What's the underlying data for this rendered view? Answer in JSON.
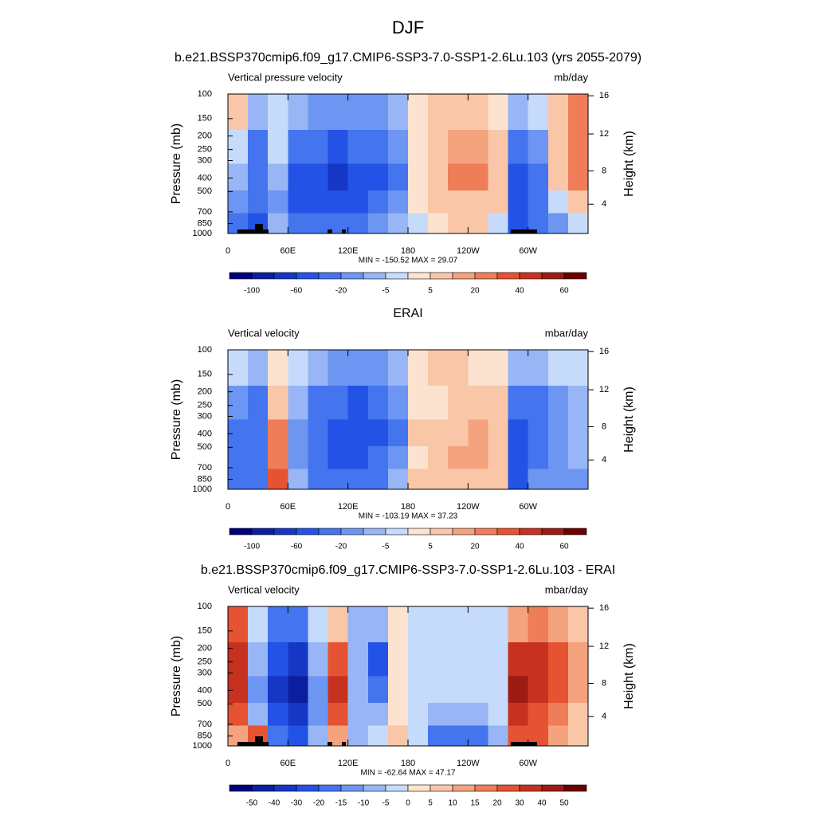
{
  "title": "DJF",
  "colors": [
    "#00007f",
    "#0b1f9e",
    "#1537c4",
    "#2352e6",
    "#4474ee",
    "#6d95f2",
    "#98b6f5",
    "#c6dbfb",
    "#fce3cf",
    "#f9c6a8",
    "#f5a27f",
    "#ef7d57",
    "#e55332",
    "#c6321f",
    "#9c1b12",
    "#6a0000"
  ],
  "chart_data": [
    {
      "type": "contour",
      "title": "b.e21.BSSP370cmip6.f09_g17.CMIP6-SSP3-7.0-SSP1-2.6Lu.103 (yrs 2055-2079)",
      "left_label": "Vertical pressure velocity",
      "right_label": "mb/day",
      "ylabel": "Pressure (mb)",
      "y2label": "Height (km)",
      "stats": "MIN = -150.52  MAX =  29.07",
      "xlim": [
        0,
        360
      ],
      "xticks": [
        0,
        {
          "value": 60,
          "label": "60E"
        },
        {
          "value": 120,
          "label": "120E"
        },
        180,
        {
          "value": 240,
          "label": "120W"
        },
        {
          "value": 300,
          "label": "60W"
        }
      ],
      "ylim": [
        1000,
        100
      ],
      "log_y": true,
      "yticks": [
        100,
        150,
        200,
        250,
        300,
        400,
        500,
        700,
        850,
        1000
      ],
      "y2ticks": [
        4,
        8,
        12,
        16
      ],
      "colorbar_levels": [
        -100,
        -60,
        -20,
        -5,
        5,
        20,
        40,
        60
      ],
      "x": [
        10,
        30,
        50,
        70,
        90,
        110,
        130,
        150,
        170,
        190,
        210,
        230,
        250,
        270,
        290,
        310,
        330,
        350
      ],
      "y": [
        130,
        250,
        400,
        600,
        850
      ],
      "values": [
        [
          5,
          -10,
          -3,
          -10,
          -20,
          -20,
          -20,
          -20,
          -10,
          2,
          5,
          5,
          5,
          3,
          -10,
          -5,
          10,
          20
        ],
        [
          -5,
          -30,
          -5,
          -40,
          -40,
          -50,
          -40,
          -40,
          -20,
          3,
          8,
          15,
          15,
          8,
          -40,
          -20,
          10,
          20
        ],
        [
          -10,
          -40,
          -10,
          -60,
          -60,
          -70,
          -60,
          -60,
          -30,
          2,
          10,
          20,
          20,
          10,
          -60,
          -30,
          5,
          20
        ],
        [
          -20,
          -40,
          -15,
          -50,
          -50,
          -50,
          -50,
          -40,
          -20,
          0,
          5,
          10,
          10,
          5,
          -60,
          -30,
          -5,
          5
        ],
        [
          -40,
          -60,
          -10,
          -30,
          -30,
          -40,
          -30,
          -20,
          -10,
          -3,
          3,
          5,
          5,
          -5,
          -60,
          -40,
          -20,
          -5
        ]
      ]
    },
    {
      "type": "contour",
      "title": "ERAI",
      "left_label": "Vertical velocity",
      "right_label": "mbar/day",
      "ylabel": "Pressure (mb)",
      "y2label": "Height (km)",
      "stats": "MIN = -103.19  MAX =  37.23",
      "xlim": [
        0,
        360
      ],
      "xticks": [
        0,
        {
          "value": 60,
          "label": "60E"
        },
        {
          "value": 120,
          "label": "120E"
        },
        180,
        {
          "value": 240,
          "label": "120W"
        },
        {
          "value": 300,
          "label": "60W"
        }
      ],
      "ylim": [
        1000,
        100
      ],
      "log_y": true,
      "yticks": [
        100,
        150,
        200,
        250,
        300,
        400,
        500,
        700,
        850,
        1000
      ],
      "y2ticks": [
        4,
        8,
        12,
        16
      ],
      "colorbar_levels": [
        -100,
        -60,
        -20,
        -5,
        5,
        20,
        40,
        60
      ],
      "x": [
        10,
        30,
        50,
        70,
        90,
        110,
        130,
        150,
        170,
        190,
        210,
        230,
        250,
        270,
        290,
        310,
        330,
        350
      ],
      "y": [
        130,
        250,
        400,
        600,
        850
      ],
      "values": [
        [
          -5,
          -10,
          3,
          -5,
          -10,
          -20,
          -20,
          -20,
          -10,
          3,
          5,
          5,
          3,
          3,
          -10,
          -10,
          -5,
          -3
        ],
        [
          -20,
          -40,
          10,
          -10,
          -30,
          -40,
          -50,
          -40,
          -20,
          3,
          3,
          8,
          10,
          5,
          -30,
          -30,
          -20,
          -10
        ],
        [
          -30,
          -40,
          20,
          -20,
          -40,
          -60,
          -60,
          -50,
          -30,
          5,
          5,
          10,
          15,
          10,
          -50,
          -40,
          -20,
          -10
        ],
        [
          -30,
          -40,
          20,
          -20,
          -40,
          -50,
          -50,
          -40,
          -20,
          3,
          10,
          15,
          15,
          10,
          -50,
          -30,
          -20,
          -10
        ],
        [
          -40,
          -30,
          30,
          -10,
          -30,
          -40,
          -30,
          -30,
          -10,
          5,
          10,
          10,
          10,
          5,
          -50,
          -20,
          -20,
          -20
        ]
      ]
    },
    {
      "type": "contour",
      "title": "b.e21.BSSP370cmip6.f09_g17.CMIP6-SSP3-7.0-SSP1-2.6Lu.103 - ERAI",
      "left_label": "Vertical velocity",
      "right_label": "mbar/day",
      "ylabel": "Pressure (mb)",
      "y2label": "Height (km)",
      "stats": "MIN = -62.64  MAX =  47.17",
      "xlim": [
        0,
        360
      ],
      "xticks": [
        0,
        {
          "value": 60,
          "label": "60E"
        },
        {
          "value": 120,
          "label": "120E"
        },
        180,
        {
          "value": 240,
          "label": "120W"
        },
        {
          "value": 300,
          "label": "60W"
        }
      ],
      "ylim": [
        1000,
        100
      ],
      "log_y": true,
      "yticks": [
        100,
        150,
        200,
        250,
        300,
        400,
        500,
        700,
        850,
        1000
      ],
      "y2ticks": [
        4,
        8,
        12,
        16
      ],
      "colorbar_levels": [
        -50,
        -40,
        -30,
        -20,
        -15,
        -10,
        -5,
        0,
        5,
        10,
        15,
        20,
        30,
        40,
        50
      ],
      "x": [
        10,
        30,
        50,
        70,
        90,
        110,
        130,
        150,
        170,
        190,
        210,
        230,
        250,
        270,
        290,
        310,
        330,
        350
      ],
      "y": [
        130,
        250,
        400,
        600,
        850
      ],
      "values": [
        [
          20,
          -5,
          -20,
          -20,
          -5,
          5,
          -10,
          -10,
          3,
          -3,
          -3,
          -3,
          -3,
          -3,
          10,
          15,
          10,
          5
        ],
        [
          30,
          -10,
          -30,
          -40,
          -10,
          20,
          -10,
          -30,
          3,
          -3,
          -3,
          -3,
          -3,
          -3,
          30,
          30,
          20,
          10
        ],
        [
          30,
          -15,
          -40,
          -50,
          -15,
          30,
          -10,
          -20,
          0,
          -3,
          -3,
          -5,
          -5,
          -3,
          40,
          30,
          20,
          10
        ],
        [
          20,
          -10,
          -30,
          -40,
          -15,
          20,
          -10,
          -10,
          3,
          -5,
          -10,
          -10,
          -10,
          -5,
          30,
          25,
          15,
          5
        ],
        [
          10,
          20,
          -20,
          -30,
          -10,
          10,
          -10,
          -5,
          5,
          -5,
          -20,
          -20,
          -20,
          -10,
          20,
          20,
          10,
          5
        ]
      ]
    }
  ]
}
